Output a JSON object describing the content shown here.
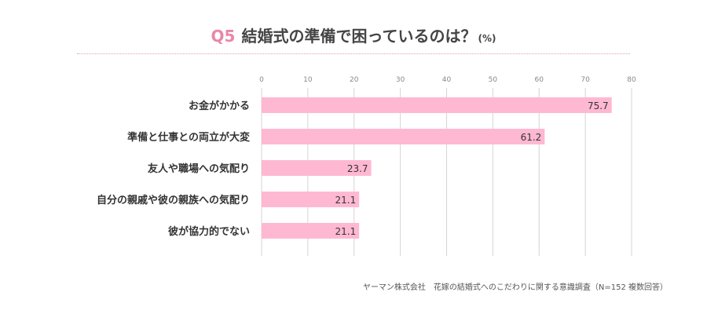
{
  "header": {
    "q_label": "Q5",
    "title": "結婚式の準備で困っているのは？",
    "unit": "(%)"
  },
  "footer": {
    "source": "ヤーマン株式会社　花嫁の結婚式へのこだわりに関する意識調査（N=152 複数回答）"
  },
  "colors": {
    "bar": "#ffb8d2",
    "accent": "#e887a8",
    "grid": "#d4d4d4"
  },
  "chart_data": {
    "type": "bar",
    "orientation": "horizontal",
    "categories": [
      "お金がかかる",
      "準備と仕事との両立が大変",
      "友人や職場への気配り",
      "自分の親戚や彼の親族への気配り",
      "彼が協力的でない"
    ],
    "values": [
      75.7,
      61.2,
      23.7,
      21.1,
      21.1
    ],
    "xlim": [
      0,
      80
    ],
    "xticks": [
      0,
      10,
      20,
      30,
      40,
      50,
      60,
      70,
      80
    ],
    "grid": true
  }
}
